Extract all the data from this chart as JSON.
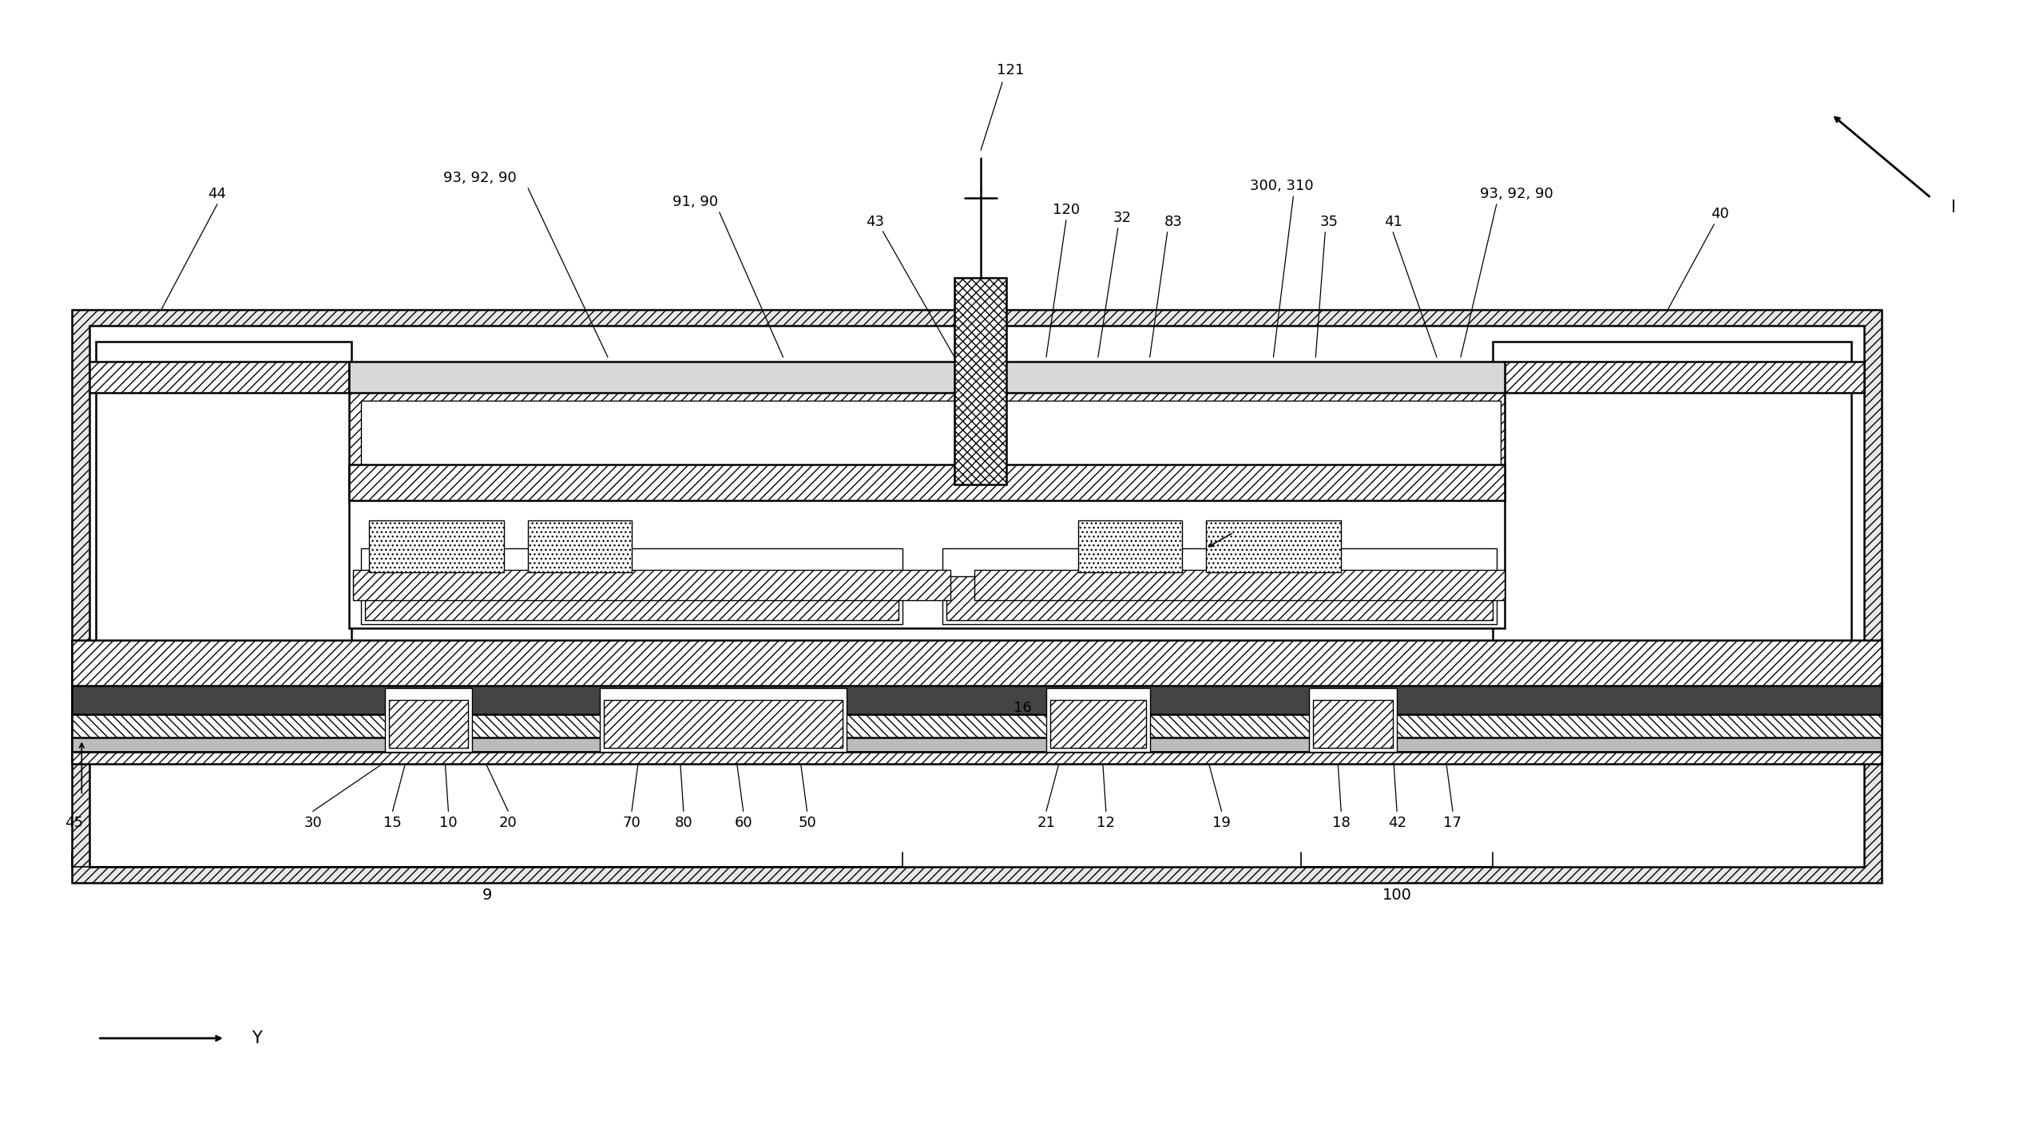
{
  "bg_color": "#ffffff",
  "fig_width": 25.48,
  "fig_height": 14.17,
  "dpi": 100
}
